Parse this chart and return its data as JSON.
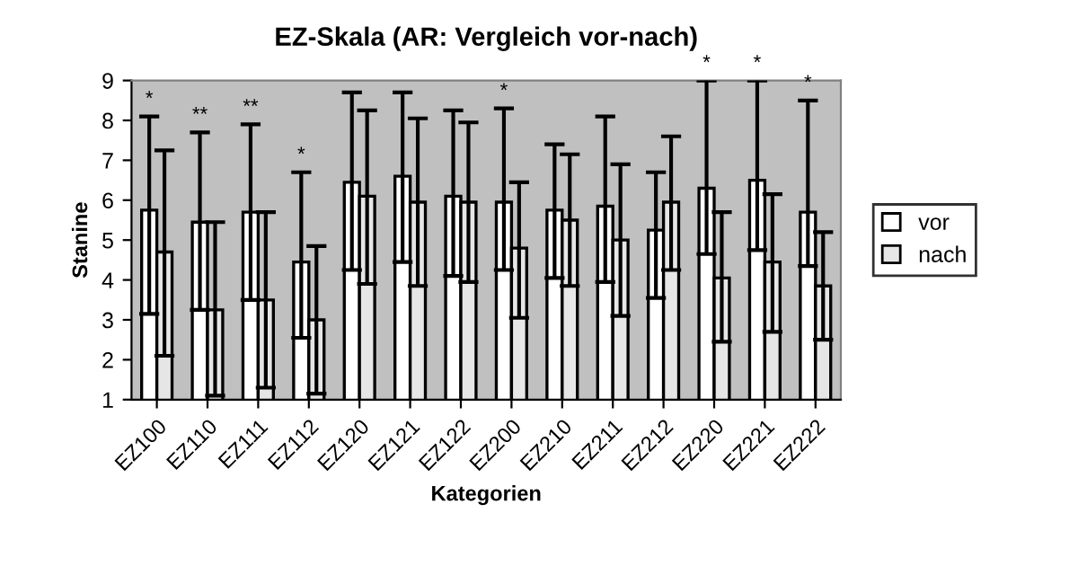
{
  "chart_data": {
    "type": "bar",
    "title": "EZ-Skala (AR: Vergleich vor-nach)",
    "xlabel": "Kategorien",
    "ylabel": "Stanine",
    "categories": [
      "EZ100",
      "EZ110",
      "EZ111",
      "EZ112",
      "EZ120",
      "EZ121",
      "EZ122",
      "EZ200",
      "EZ210",
      "EZ211",
      "EZ212",
      "EZ220",
      "EZ221",
      "EZ222"
    ],
    "series": [
      {
        "name": "vor",
        "color": "#ffffff",
        "values": [
          5.75,
          5.45,
          5.7,
          4.45,
          6.45,
          6.6,
          6.1,
          5.95,
          5.75,
          5.85,
          5.25,
          6.3,
          6.5,
          5.7
        ],
        "errors": [
          [
            3.15,
            8.1
          ],
          [
            3.25,
            7.7
          ],
          [
            3.5,
            7.9
          ],
          [
            2.55,
            6.7
          ],
          [
            4.25,
            8.7
          ],
          [
            4.45,
            8.7
          ],
          [
            4.1,
            8.25
          ],
          [
            4.25,
            8.3
          ],
          [
            4.05,
            7.4
          ],
          [
            3.95,
            8.1
          ],
          [
            3.55,
            6.7
          ],
          [
            4.65,
            9
          ],
          [
            4.75,
            9
          ],
          [
            4.35,
            8.5
          ]
        ]
      },
      {
        "name": "nach",
        "color": "#e6e6e6",
        "values": [
          4.7,
          3.25,
          3.5,
          3.0,
          6.1,
          5.95,
          5.95,
          4.8,
          5.5,
          5.0,
          5.95,
          4.05,
          4.45,
          3.85
        ],
        "errors": [
          [
            2.1,
            7.25
          ],
          [
            1.1,
            5.45
          ],
          [
            1.3,
            5.7
          ],
          [
            1.15,
            4.85
          ],
          [
            3.9,
            8.25
          ],
          [
            3.85,
            8.05
          ],
          [
            3.95,
            7.95
          ],
          [
            3.05,
            6.45
          ],
          [
            3.85,
            7.15
          ],
          [
            3.1,
            6.9
          ],
          [
            4.25,
            7.6
          ],
          [
            2.45,
            5.7
          ],
          [
            2.7,
            6.15
          ],
          [
            2.5,
            5.2
          ]
        ]
      }
    ],
    "ylim": [
      1,
      9
    ],
    "yticks": [
      1,
      2,
      3,
      4,
      5,
      6,
      7,
      8,
      9
    ],
    "legend": "right",
    "annotations": [
      {
        "text": "*",
        "x": "EZ100",
        "y": 8.1
      },
      {
        "text": "**",
        "x": "EZ110",
        "y": 7.7
      },
      {
        "text": "**",
        "x": "EZ111",
        "y": 7.9
      },
      {
        "text": "*",
        "x": "EZ112",
        "y": 6.7
      },
      {
        "text": "*",
        "x": "EZ200",
        "y": 8.3
      },
      {
        "text": "*",
        "x": "EZ220",
        "y": 9
      },
      {
        "text": "*",
        "x": "EZ221",
        "y": 9
      },
      {
        "text": "*",
        "x": "EZ222",
        "y": 8.5
      }
    ]
  }
}
